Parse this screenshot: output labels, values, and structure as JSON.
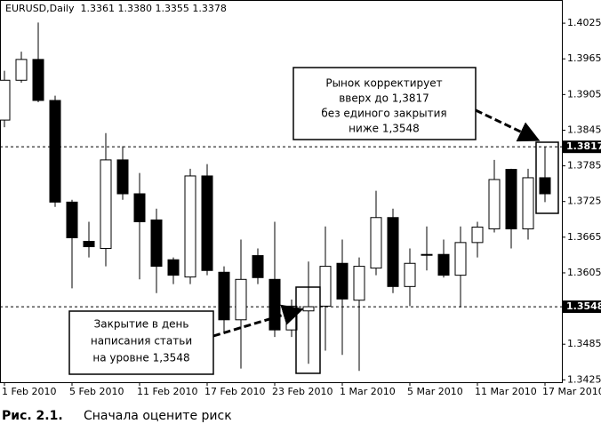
{
  "chart_data": {
    "type": "candlestick",
    "title": "EURUSD,Daily  1.3361 1.3380 1.3355 1.3378",
    "categories": [
      "1 Feb 2010",
      null,
      null,
      null,
      "5 Feb 2010",
      null,
      null,
      null,
      "11 Feb 2010",
      null,
      null,
      null,
      "17 Feb 2010",
      null,
      null,
      null,
      "23 Feb 2010",
      null,
      null,
      null,
      "1 Mar 2010",
      null,
      null,
      null,
      "5 Mar 2010",
      null,
      null,
      null,
      "11 Mar 2010",
      null,
      null,
      null,
      "17 Mar 2010"
    ],
    "open": [
      1.3862,
      1.3929,
      1.3964,
      1.3895,
      1.3724,
      1.3658,
      1.3646,
      1.3795,
      1.3738,
      1.3694,
      1.3627,
      1.3598,
      1.3768,
      1.3606,
      1.3526,
      1.3634,
      1.3594,
      1.3509,
      1.3541,
      1.3549,
      1.3621,
      1.3559,
      1.3613,
      1.3698,
      1.3582,
      1.3636,
      1.3636,
      1.3601,
      1.3656,
      1.3679,
      1.3779,
      1.3679,
      1.3765
    ],
    "high": [
      1.3945,
      1.3977,
      1.4026,
      1.3903,
      1.3728,
      1.3691,
      1.384,
      1.3818,
      1.3773,
      1.3713,
      1.3631,
      1.378,
      1.3788,
      1.3616,
      1.3661,
      1.3646,
      1.3691,
      1.356,
      1.3624,
      1.3683,
      1.3661,
      1.3631,
      1.3743,
      1.3713,
      1.3646,
      1.3683,
      1.3661,
      1.3683,
      1.3691,
      1.3795,
      1.378,
      1.378,
      1.3817
    ],
    "low": [
      1.385,
      1.3925,
      1.3892,
      1.3716,
      1.3579,
      1.3631,
      1.3616,
      1.3728,
      1.3594,
      1.3571,
      1.3586,
      1.3586,
      1.3601,
      1.3504,
      1.3444,
      1.3586,
      1.3497,
      1.3497,
      1.3452,
      1.3474,
      1.3467,
      1.344,
      1.3601,
      1.3571,
      1.3549,
      1.3609,
      1.3597,
      1.3547,
      1.3631,
      1.3673,
      1.3646,
      1.3661,
      1.3724
    ],
    "close": [
      1.3929,
      1.3964,
      1.3895,
      1.3724,
      1.3664,
      1.3649,
      1.3795,
      1.3738,
      1.3691,
      1.3616,
      1.3601,
      1.3768,
      1.3609,
      1.3526,
      1.3594,
      1.3597,
      1.3509,
      1.3549,
      1.3548,
      1.3616,
      1.3561,
      1.3616,
      1.3698,
      1.3582,
      1.3621,
      1.3636,
      1.3601,
      1.3656,
      1.3682,
      1.3762,
      1.3679,
      1.3765,
      1.3738
    ],
    "up_color": "#ffffff",
    "down_color": "#000000",
    "ylim": [
      1.3421,
      1.4064
    ],
    "yticks": [
      1.4025,
      1.3965,
      1.3905,
      1.3845,
      1.3785,
      1.3725,
      1.3665,
      1.3605,
      1.3485,
      1.3425
    ],
    "price_lines": [
      1.3817,
      1.3548
    ],
    "annotations": [
      {
        "lines": [
          "Рынок корректирует",
          "вверх до 1,3817",
          "без единого закрытия",
          "ниже 1,3548"
        ]
      },
      {
        "lines": [
          "Закрытие в день",
          "написания статьи",
          "на уровне 1,3548"
        ]
      }
    ],
    "caption_label": "Рис. 2.1.",
    "caption": "Сначала оцените риск"
  }
}
